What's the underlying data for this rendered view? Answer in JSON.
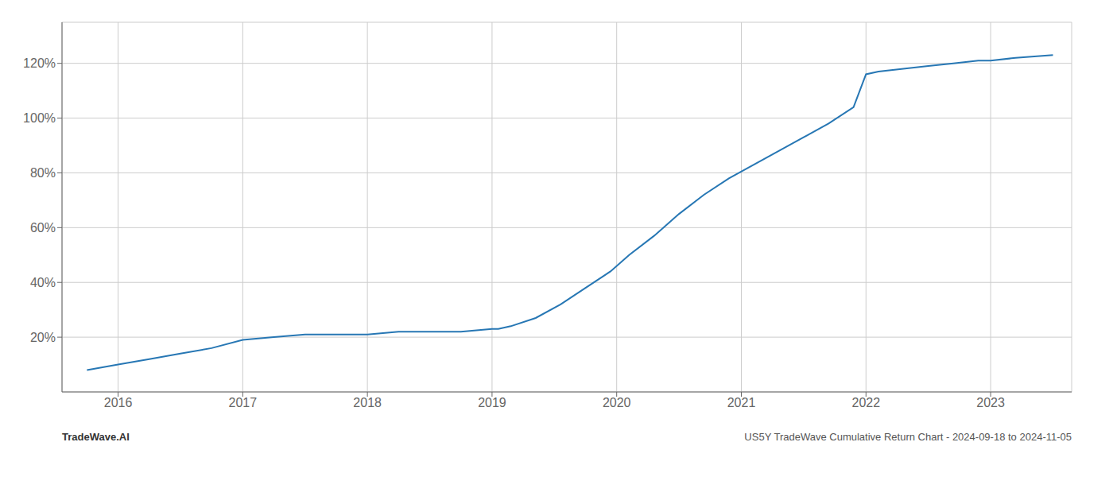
{
  "chart_data": {
    "type": "line",
    "x": [
      2015.75,
      2016.0,
      2016.25,
      2016.5,
      2016.75,
      2017.0,
      2017.25,
      2017.5,
      2017.75,
      2018.0,
      2018.25,
      2018.5,
      2018.75,
      2019.0,
      2019.05,
      2019.15,
      2019.35,
      2019.55,
      2019.75,
      2019.95,
      2020.1,
      2020.3,
      2020.5,
      2020.7,
      2020.9,
      2021.1,
      2021.3,
      2021.5,
      2021.7,
      2021.9,
      2022.0,
      2022.1,
      2022.3,
      2022.5,
      2022.7,
      2022.9,
      2023.0,
      2023.2,
      2023.5
    ],
    "values": [
      8,
      10,
      12,
      14,
      16,
      19,
      20,
      21,
      21,
      21,
      22,
      22,
      22,
      23,
      23,
      24,
      27,
      32,
      38,
      44,
      50,
      57,
      65,
      72,
      78,
      83,
      88,
      93,
      98,
      104,
      116,
      117,
      118,
      119,
      120,
      121,
      121,
      122,
      123
    ],
    "color": "#2777b4",
    "xlim": [
      2015.55,
      2023.65
    ],
    "ylim": [
      0,
      135
    ],
    "xticks": [
      2016,
      2017,
      2018,
      2019,
      2020,
      2021,
      2022,
      2023
    ],
    "yticks": [
      {
        "value": 20,
        "label": "20%"
      },
      {
        "value": 40,
        "label": "40%"
      },
      {
        "value": 60,
        "label": "60%"
      },
      {
        "value": 80,
        "label": "80%"
      },
      {
        "value": 100,
        "label": "100%"
      },
      {
        "value": 120,
        "label": "120%"
      }
    ],
    "grid": true,
    "annotations": [
      "TradeWave.AI",
      "US5Y TradeWave Cumulative Return Chart - 2024-09-18 to 2024-11-05"
    ]
  }
}
